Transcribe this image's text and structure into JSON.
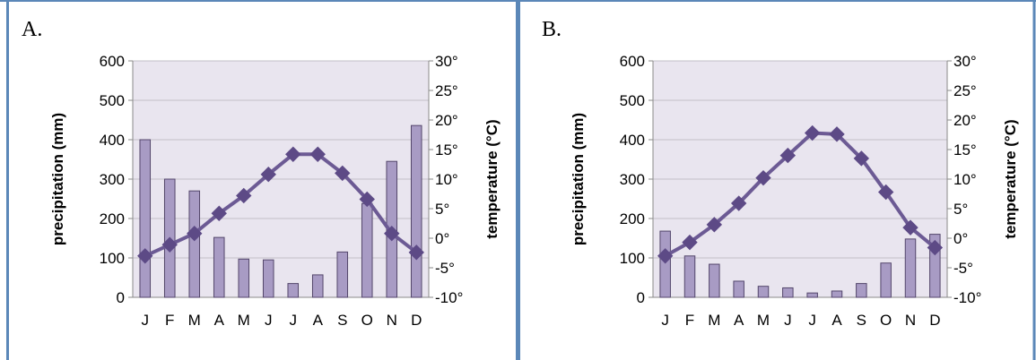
{
  "panels": {
    "a": {
      "label": "A."
    },
    "b": {
      "label": "B."
    }
  },
  "colors": {
    "frame": "#5b87b8",
    "plot_bg": "#e9e5ef",
    "grid": "#c2bfc7",
    "bar_fill": "#a89bc4",
    "bar_stroke": "#53466b",
    "line": "#6c5a94",
    "marker": "#5d4a86"
  },
  "chart_data": [
    {
      "type": "bar",
      "panel": "a",
      "categories": [
        "J",
        "F",
        "M",
        "A",
        "M",
        "J",
        "J",
        "A",
        "S",
        "O",
        "N",
        "D"
      ],
      "series": [
        {
          "axis": "left",
          "kind": "bar",
          "values": [
            400,
            300,
            270,
            152,
            97,
            95,
            35,
            57,
            115,
            238,
            345,
            436
          ]
        },
        {
          "axis": "right",
          "kind": "line",
          "values": [
            -3.0,
            -1.1,
            0.8,
            4.2,
            7.2,
            10.8,
            14.2,
            14.2,
            11.0,
            6.6,
            0.8,
            -2.4
          ]
        }
      ],
      "ylabel": "precipitation (mm)",
      "y2label": "temperature (°C)",
      "ylim": [
        0,
        600
      ],
      "y2lim": [
        -10,
        30
      ],
      "yticks": [
        "0",
        "100",
        "200",
        "300",
        "400",
        "500",
        "600"
      ],
      "y2ticks": [
        "-10°",
        "-5°",
        "0°",
        "5°",
        "10°",
        "15°",
        "20°",
        "25°",
        "30°"
      ],
      "grid": true,
      "legend": "none"
    },
    {
      "type": "bar",
      "panel": "b",
      "categories": [
        "J",
        "F",
        "M",
        "A",
        "M",
        "J",
        "J",
        "A",
        "S",
        "O",
        "N",
        "D"
      ],
      "series": [
        {
          "axis": "left",
          "kind": "bar",
          "values": [
            168,
            105,
            84,
            41,
            28,
            24,
            11,
            16,
            35,
            87,
            148,
            160
          ]
        },
        {
          "axis": "right",
          "kind": "line",
          "values": [
            -3.0,
            -0.7,
            2.3,
            5.9,
            10.2,
            14.0,
            17.8,
            17.6,
            13.5,
            7.8,
            1.8,
            -1.6
          ]
        }
      ],
      "ylabel": "precipitation (mm)",
      "y2label": "temperature (°C)",
      "ylim": [
        0,
        600
      ],
      "y2lim": [
        -10,
        30
      ],
      "yticks": [
        "0",
        "100",
        "200",
        "300",
        "400",
        "500",
        "600"
      ],
      "y2ticks": [
        "-10°",
        "-5°",
        "0°",
        "5°",
        "10°",
        "15°",
        "20°",
        "25°",
        "30°"
      ],
      "grid": true,
      "legend": "none"
    }
  ]
}
